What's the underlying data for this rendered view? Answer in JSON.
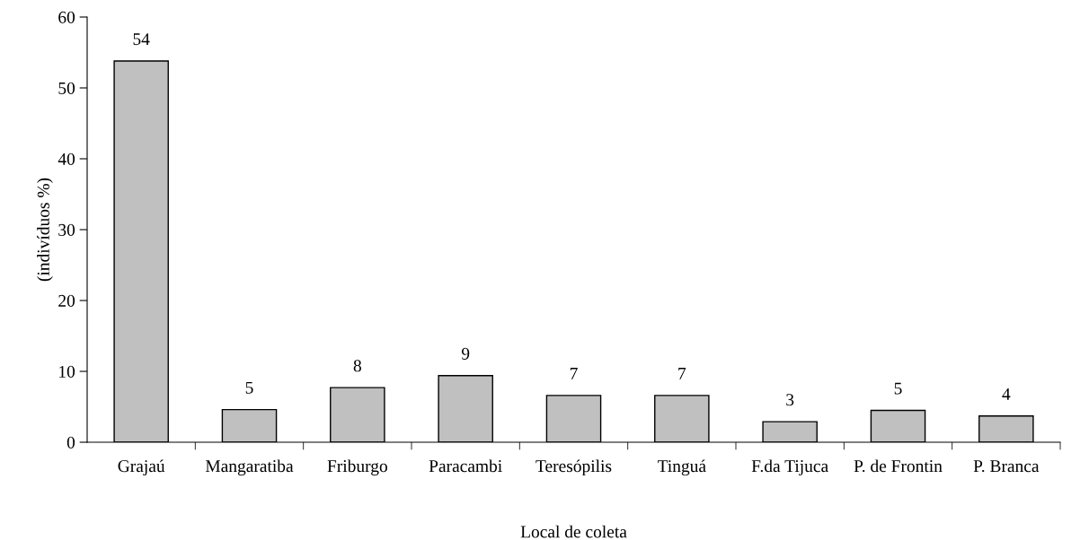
{
  "chart_data": {
    "type": "bar",
    "xlabel": "Local de coleta",
    "ylabel": "(indivíduos %)",
    "categories": [
      "Grajaú",
      "Mangaratiba",
      "Friburgo",
      "Paracambi",
      "Teresópilis",
      "Tinguá",
      "F.da Tijuca",
      "P. de Frontin",
      "P. Branca"
    ],
    "values": [
      53.8,
      4.6,
      7.7,
      9.4,
      6.6,
      6.6,
      2.9,
      4.5,
      3.7
    ],
    "value_labels": [
      "54",
      "5",
      "8",
      "9",
      "7",
      "7",
      "3",
      "5",
      "4"
    ],
    "color": "#c0c0c0",
    "ylim": [
      0,
      60
    ],
    "yticks": [
      0,
      10,
      20,
      30,
      40,
      50,
      60
    ],
    "grid": false
  }
}
